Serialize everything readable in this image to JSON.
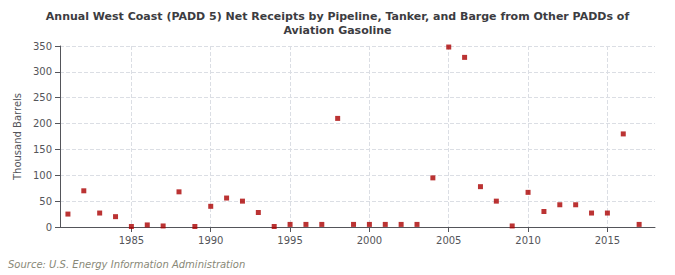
{
  "chart_data": {
    "type": "scatter",
    "title": "Annual West Coast (PADD 5) Net Receipts by Pipeline, Tanker, and Barge from Other PADDs of\nAviation Gasoline",
    "ylabel": "Thousand Barrels",
    "annotation": "Source: U.S. Energy Information Administration",
    "x": [
      1981,
      1982,
      1983,
      1984,
      1985,
      1986,
      1987,
      1988,
      1989,
      1990,
      1991,
      1992,
      1993,
      1994,
      1995,
      1996,
      1997,
      1998,
      1999,
      2000,
      2001,
      2002,
      2003,
      2004,
      2005,
      2006,
      2007,
      2008,
      2009,
      2010,
      2011,
      2012,
      2013,
      2014,
      2015,
      2016,
      2017
    ],
    "values": [
      25,
      70,
      27,
      20,
      1,
      4,
      2,
      68,
      1,
      40,
      56,
      50,
      28,
      1,
      5,
      5,
      5,
      210,
      5,
      5,
      5,
      5,
      5,
      95,
      348,
      328,
      78,
      50,
      2,
      67,
      30,
      43,
      43,
      27,
      27,
      180,
      5
    ],
    "color": "#aa0000",
    "marker": "square",
    "xlim": [
      1980.5,
      2018
    ],
    "xticks": [
      1985,
      1990,
      1995,
      2000,
      2005,
      2010,
      2015
    ],
    "ylim": [
      0,
      350
    ],
    "yticks": [
      0,
      50,
      100,
      150,
      200,
      250,
      300,
      350
    ],
    "grid": true
  }
}
